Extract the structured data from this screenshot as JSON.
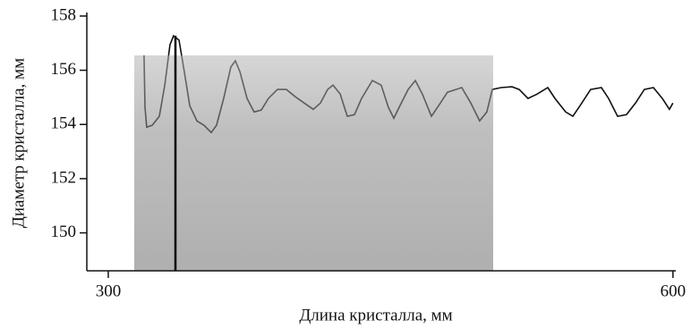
{
  "chart_data": {
    "type": "line",
    "xlabel": "Длина кристалла, мм",
    "ylabel": "Диаметр кристалла, мм",
    "xlim": [
      288.6,
      601.5
    ],
    "ylim": [
      148.6,
      158.13
    ],
    "xticks": [
      300,
      600
    ],
    "yticks": [
      150,
      152,
      154,
      156,
      158
    ],
    "grid": false,
    "series": [
      {
        "color": "#111111",
        "x": [
          319.0,
          319.5,
          320.4,
          323.3,
          327.1,
          330.0,
          332.8,
          334.7,
          337.6,
          340.4,
          343.3,
          347.1,
          350.9,
          354.7,
          357.5,
          361.3,
          365.1,
          367.5,
          369.9,
          373.7,
          377.5,
          381.3,
          385.1,
          389.9,
          394.6,
          399.4,
          404.1,
          408.9,
          412.7,
          416.5,
          419.4,
          423.2,
          427.0,
          430.8,
          434.6,
          440.3,
          445.0,
          448.8,
          451.7,
          454.5,
          459.3,
          463.1,
          466.9,
          471.7,
          475.5,
          480.2,
          487.8,
          492.6,
          497.3,
          501.1,
          504.0,
          508.7,
          514.5,
          518.3,
          523.0,
          527.8,
          533.5,
          537.3,
          543.0,
          546.8,
          550.6,
          556.3,
          562.0,
          565.8,
          570.6,
          575.3,
          580.1,
          584.8,
          589.6,
          594.3,
          598.1,
          600.0
        ],
        "values": [
          156.55,
          154.63,
          153.9,
          153.97,
          154.3,
          155.45,
          156.94,
          157.27,
          157.11,
          155.95,
          154.69,
          154.13,
          153.97,
          153.7,
          153.97,
          154.96,
          156.12,
          156.35,
          155.95,
          154.96,
          154.46,
          154.53,
          154.96,
          155.29,
          155.29,
          155.02,
          154.79,
          154.56,
          154.79,
          155.29,
          155.45,
          155.12,
          154.3,
          154.36,
          154.96,
          155.62,
          155.45,
          154.63,
          154.23,
          154.63,
          155.29,
          155.62,
          155.12,
          154.3,
          154.69,
          155.19,
          155.36,
          154.79,
          154.13,
          154.46,
          155.29,
          155.36,
          155.39,
          155.29,
          154.96,
          155.12,
          155.36,
          154.96,
          154.46,
          154.3,
          154.69,
          155.29,
          155.36,
          154.96,
          154.3,
          154.36,
          154.79,
          155.29,
          155.36,
          154.96,
          154.56,
          154.79
        ]
      }
    ]
  }
}
